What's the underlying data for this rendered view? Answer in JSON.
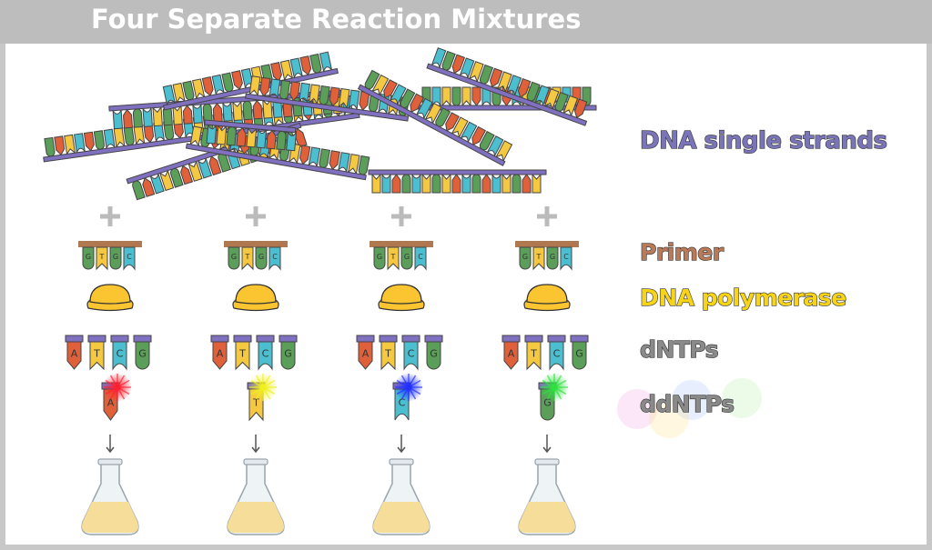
{
  "title": "Four Separate Reaction Mixtures",
  "labels": {
    "strands": "DNA single strands",
    "primer": "Primer",
    "polymerase": "DNA polymerase",
    "dntps": "dNTPs",
    "ddntps": "ddNTPs"
  },
  "primer_bases": [
    "G",
    "T",
    "G",
    "C"
  ],
  "dntp_bases": [
    "A",
    "T",
    "C",
    "G"
  ],
  "reactions": [
    {
      "ddntp": "A",
      "glow": "#ff2030"
    },
    {
      "ddntp": "T",
      "glow": "#f0f020"
    },
    {
      "ddntp": "C",
      "glow": "#2030ff"
    },
    {
      "ddntp": "G",
      "glow": "#30e040"
    }
  ],
  "colors": {
    "A": "#e0603a",
    "T": "#f5c842",
    "C": "#4bbfd0",
    "G": "#5a9e5a",
    "backbone": "#8070c0",
    "primer": "#b07850",
    "polymerase": "#fbc531",
    "strands_label": "#7a74b8",
    "primer_label": "#b87a58",
    "polymerase_label": "#f7d417",
    "ntp_label": "#8a8a8a"
  }
}
